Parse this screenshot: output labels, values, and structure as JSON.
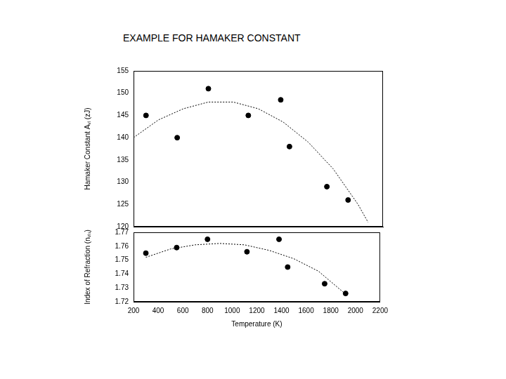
{
  "title": "EXAMPLE FOR HAMAKER CONSTANT",
  "chart_data": [
    {
      "type": "scatter",
      "ylabel": "Hamaker Constant Aᵥᵢ (zJ)",
      "xlim": [
        200,
        2200
      ],
      "xticks": [
        200,
        400,
        600,
        800,
        1000,
        1200,
        1400,
        1600,
        1800,
        2000,
        2200
      ],
      "ylim": [
        120,
        155
      ],
      "yticks": [
        120,
        125,
        130,
        135,
        140,
        145,
        150,
        155
      ],
      "grid": false,
      "tick_labels": "y",
      "series": [
        {
          "type": "scatter",
          "marker": "circle",
          "color": "#000000",
          "x": [
            300,
            550,
            800,
            1120,
            1380,
            1450,
            1750,
            1920
          ],
          "values": [
            145,
            140,
            151,
            145,
            148.5,
            138,
            129,
            126
          ]
        },
        {
          "type": "line",
          "line_style": "dotted",
          "color": "#000000",
          "x": [
            200,
            400,
            600,
            800,
            1000,
            1200,
            1400,
            1600,
            1800,
            2000,
            2080
          ],
          "values": [
            140,
            144,
            146.5,
            148,
            148,
            146.5,
            143.5,
            139,
            133,
            125,
            121
          ]
        }
      ]
    },
    {
      "type": "scatter",
      "xlabel": "Temperature (K)",
      "ylabel": "Index of Refraction (nᵥᵢₛ)",
      "xlim": [
        200,
        2200
      ],
      "xticks": [
        200,
        400,
        600,
        800,
        1000,
        1200,
        1400,
        1600,
        1800,
        2000,
        2200
      ],
      "ylim": [
        1.72,
        1.77
      ],
      "yticks": [
        1.72,
        1.73,
        1.74,
        1.75,
        1.76,
        1.77
      ],
      "grid": false,
      "series": [
        {
          "type": "scatter",
          "marker": "circle",
          "color": "#000000",
          "x": [
            300,
            550,
            800,
            1120,
            1380,
            1450,
            1750,
            1920
          ],
          "values": [
            1.755,
            1.759,
            1.765,
            1.756,
            1.765,
            1.745,
            1.733,
            1.726
          ]
        },
        {
          "type": "line",
          "line_style": "dotted",
          "color": "#000000",
          "x": [
            300,
            500,
            700,
            900,
            1100,
            1300,
            1500,
            1700,
            1900
          ],
          "values": [
            1.752,
            1.758,
            1.761,
            1.762,
            1.761,
            1.757,
            1.751,
            1.742,
            1.727
          ]
        }
      ]
    }
  ]
}
